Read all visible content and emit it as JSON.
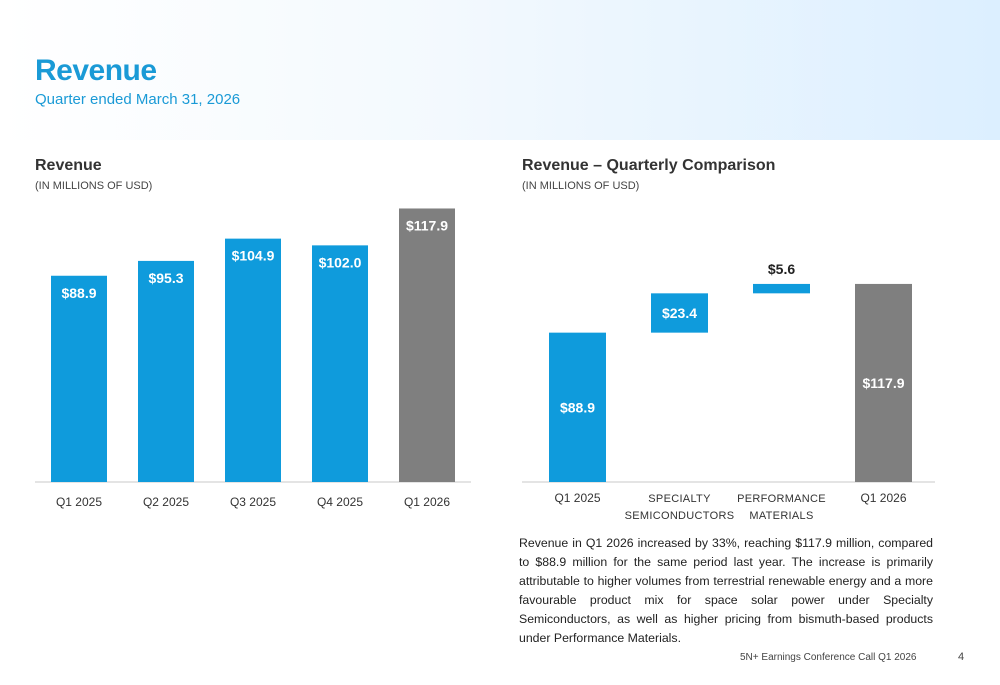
{
  "header": {
    "title": "Revenue",
    "subtitle": "Quarter ended March 31, 2026"
  },
  "colors": {
    "accent": "#1a9ad6",
    "bar_blue": "#0f9bdc",
    "bar_gray": "#7f7f7f",
    "axis": "#c8c8c8"
  },
  "chart_data": [
    {
      "type": "bar",
      "title": "Revenue",
      "units": "(IN MILLIONS OF USD)",
      "categories": [
        "Q1 2025",
        "Q2 2025",
        "Q3 2025",
        "Q4 2025",
        "Q1 2026"
      ],
      "values": [
        88.9,
        95.3,
        104.9,
        102.0,
        117.9
      ],
      "labels": [
        "$88.9",
        "$95.3",
        "$104.9",
        "$102.0",
        "$117.9"
      ],
      "bar_colors": [
        "#0f9bdc",
        "#0f9bdc",
        "#0f9bdc",
        "#0f9bdc",
        "#7f7f7f"
      ],
      "ylim": [
        0,
        125
      ],
      "grid": false
    },
    {
      "type": "bar",
      "subtype": "waterfall",
      "title": "Revenue – Quarterly Comparison",
      "units": "(IN MILLIONS OF USD)",
      "categories": [
        [
          "Q1 2025"
        ],
        [
          "SPECIALTY",
          "SEMICONDUCTORS"
        ],
        [
          "PERFORMANCE",
          "MATERIALS"
        ],
        [
          "Q1 2026"
        ]
      ],
      "steps": [
        {
          "kind": "total",
          "value": 88.9,
          "label": "$88.9",
          "color": "#0f9bdc"
        },
        {
          "kind": "delta",
          "value": 23.4,
          "label": "$23.4",
          "color": "#0f9bdc"
        },
        {
          "kind": "delta",
          "value": 5.6,
          "label": "$5.6",
          "color": "#0f9bdc"
        },
        {
          "kind": "total",
          "value": 117.9,
          "label": "$117.9",
          "color": "#7f7f7f"
        }
      ],
      "ylim": [
        0,
        125
      ],
      "grid": false
    }
  ],
  "commentary": "Revenue in Q1 2026 increased by 33%, reaching $117.9 million, compared to $88.9 million for the same period last year. The increase is primarily attributable to higher volumes from terrestrial renewable energy and a more favourable product mix for space solar power under Specialty Semiconductors, as well as higher pricing from bismuth-based products under Performance Materials.",
  "footer": {
    "text": "5N+ Earnings Conference Call Q1 2026",
    "page_number": "4"
  }
}
